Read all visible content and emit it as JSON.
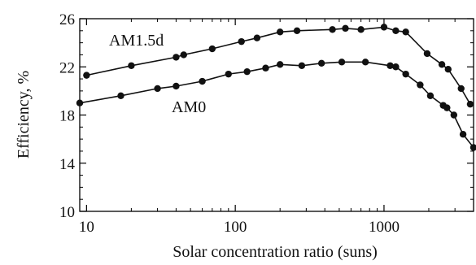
{
  "chart_data": {
    "type": "line",
    "xlabel": "Solar concentration ratio (suns)",
    "ylabel": "Efficiency, %",
    "x_scale": "log",
    "xlim": [
      9,
      4000
    ],
    "ylim": [
      10,
      26
    ],
    "x_ticks": [
      10,
      100,
      1000
    ],
    "x_tick_labels": [
      "10",
      "100",
      "1000"
    ],
    "y_ticks": [
      10,
      14,
      18,
      22,
      26
    ],
    "y_tick_labels": [
      "10",
      "14",
      "18",
      "22",
      "26"
    ],
    "grid": false,
    "legend": "none",
    "series": [
      {
        "name": "AM1.5d",
        "x": [
          10,
          20,
          40,
          45,
          70,
          110,
          140,
          200,
          260,
          450,
          550,
          700,
          1000,
          1200,
          1400,
          1950,
          2450,
          2700,
          3300,
          3800
        ],
        "y": [
          21.3,
          22.1,
          22.8,
          23.0,
          23.5,
          24.1,
          24.4,
          24.9,
          25.0,
          25.1,
          25.2,
          25.1,
          25.3,
          25.0,
          24.9,
          23.1,
          22.2,
          21.8,
          20.2,
          18.9
        ]
      },
      {
        "name": "AM0",
        "x": [
          9,
          17,
          30,
          40,
          60,
          90,
          120,
          160,
          200,
          280,
          380,
          520,
          750,
          1100,
          1200,
          1400,
          1750,
          2050,
          2500,
          2650,
          2950,
          3400,
          4000
        ],
        "y": [
          19.0,
          19.6,
          20.2,
          20.4,
          20.8,
          21.4,
          21.6,
          21.9,
          22.2,
          22.1,
          22.3,
          22.4,
          22.4,
          22.1,
          22.0,
          21.4,
          20.5,
          19.6,
          18.8,
          18.6,
          18.0,
          16.4,
          15.3
        ]
      }
    ]
  }
}
